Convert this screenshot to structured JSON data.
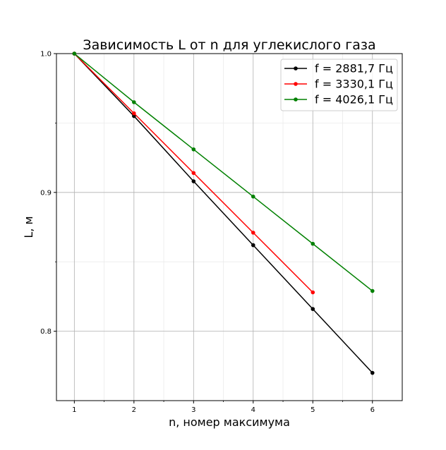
{
  "chart_data": {
    "type": "line",
    "title": "Зависимость L от n для углекислого газа",
    "xlabel": "n, номер максимума",
    "ylabel": "L, м",
    "xlim": [
      0.7,
      6.5
    ],
    "ylim": [
      0.75,
      1.0
    ],
    "xticks": [
      1,
      2,
      3,
      4,
      5,
      6
    ],
    "xtick_labels": [
      "1",
      "2",
      "3",
      "4",
      "5",
      "6"
    ],
    "yticks": [
      0.8,
      0.9,
      1.0
    ],
    "ytick_labels": [
      "0.8",
      "0.9",
      "1.0"
    ],
    "grid": true,
    "legend_position": "top-right",
    "series": [
      {
        "name": "f = 2881,7 Гц",
        "color": "#000000",
        "x": [
          1,
          2,
          3,
          4,
          5,
          6
        ],
        "values": [
          1.0,
          0.955,
          0.908,
          0.862,
          0.816,
          0.77
        ]
      },
      {
        "name": "f = 3330,1 Гц",
        "color": "#ff0000",
        "x": [
          1,
          2,
          3,
          4,
          5
        ],
        "values": [
          1.0,
          0.957,
          0.914,
          0.871,
          0.828
        ]
      },
      {
        "name": "f = 4026,1 Гц",
        "color": "#008000",
        "x": [
          1,
          2,
          3,
          4,
          5,
          6
        ],
        "values": [
          1.0,
          0.965,
          0.931,
          0.897,
          0.863,
          0.829
        ]
      }
    ]
  }
}
